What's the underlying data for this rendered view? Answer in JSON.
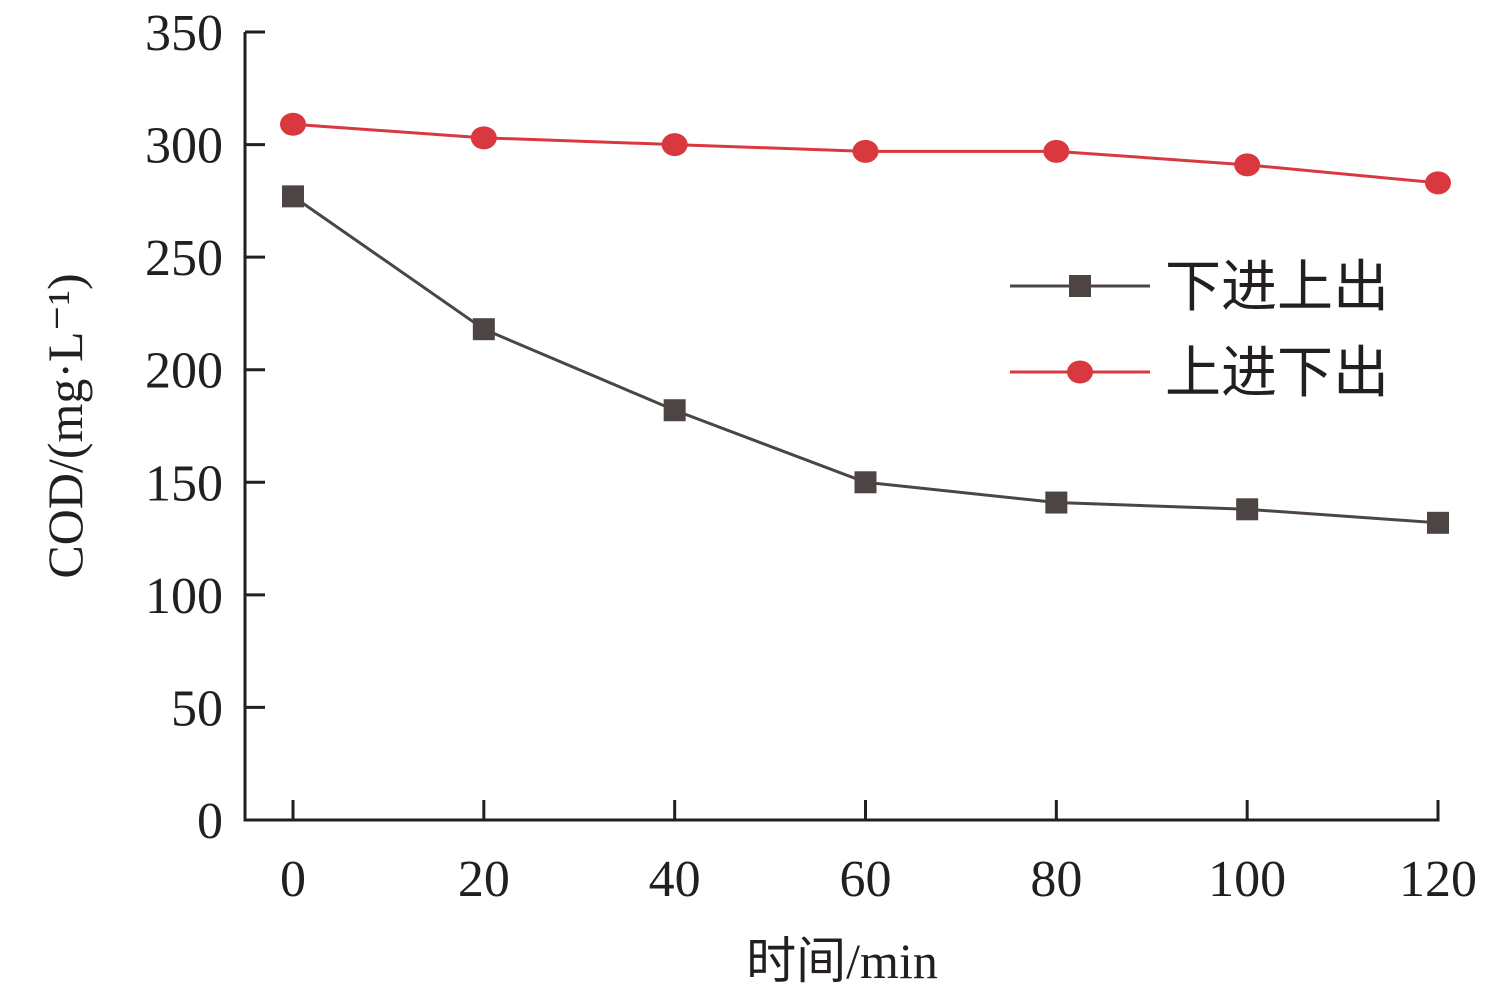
{
  "chart_data": {
    "type": "line",
    "title": "",
    "xlabel": "时间/min",
    "ylabel": "COD/(mg·L⁻¹)",
    "x": [
      0,
      20,
      40,
      60,
      80,
      100,
      120
    ],
    "xlim": [
      -5,
      120
    ],
    "ylim": [
      0,
      350
    ],
    "xticks": [
      0,
      20,
      40,
      60,
      80,
      100,
      120
    ],
    "yticks": [
      0,
      50,
      100,
      150,
      200,
      250,
      300,
      350
    ],
    "grid": false,
    "legend_position": "center-right",
    "series": [
      {
        "name": "下进上出",
        "marker": "square",
        "color": "#4d4544",
        "values": [
          277,
          218,
          182,
          150,
          141,
          138,
          132
        ]
      },
      {
        "name": "上进下出",
        "marker": "circle",
        "color": "#d9383e",
        "values": [
          309,
          303,
          300,
          297,
          297,
          291,
          283
        ]
      }
    ]
  }
}
